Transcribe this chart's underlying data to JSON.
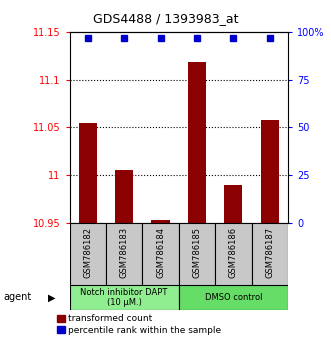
{
  "title": "GDS4488 / 1393983_at",
  "samples": [
    "GSM786182",
    "GSM786183",
    "GSM786184",
    "GSM786185",
    "GSM786186",
    "GSM786187"
  ],
  "red_values": [
    11.055,
    11.005,
    10.953,
    11.118,
    10.99,
    11.058
  ],
  "blue_values": [
    97,
    97,
    97,
    97,
    97,
    97
  ],
  "ylim_left": [
    10.95,
    11.15
  ],
  "ylim_right": [
    0,
    100
  ],
  "yticks_left": [
    10.95,
    11.0,
    11.05,
    11.1,
    11.15
  ],
  "ytick_labels_left": [
    "10.95",
    "11",
    "11.05",
    "11.1",
    "11.15"
  ],
  "yticks_right": [
    0,
    25,
    50,
    75,
    100
  ],
  "ytick_labels_right": [
    "0",
    "25",
    "50",
    "75",
    "100%"
  ],
  "groups": [
    {
      "label": "Notch inhibitor DAPT\n(10 μM.)",
      "start": 0,
      "end": 3,
      "color": "#90EE90"
    },
    {
      "label": "DMSO control",
      "start": 3,
      "end": 6,
      "color": "#66DD66"
    }
  ],
  "agent_label": "agent",
  "legend_red": "transformed count",
  "legend_blue": "percentile rank within the sample",
  "bar_color": "#8B0000",
  "dot_color": "#0000CD",
  "bar_bottom": 10.95,
  "grid_ticks": [
    11.0,
    11.05,
    11.1
  ],
  "bar_width": 0.5,
  "title_fontsize": 9,
  "axis_fontsize": 7,
  "label_fontsize": 6,
  "legend_fontsize": 6.5
}
